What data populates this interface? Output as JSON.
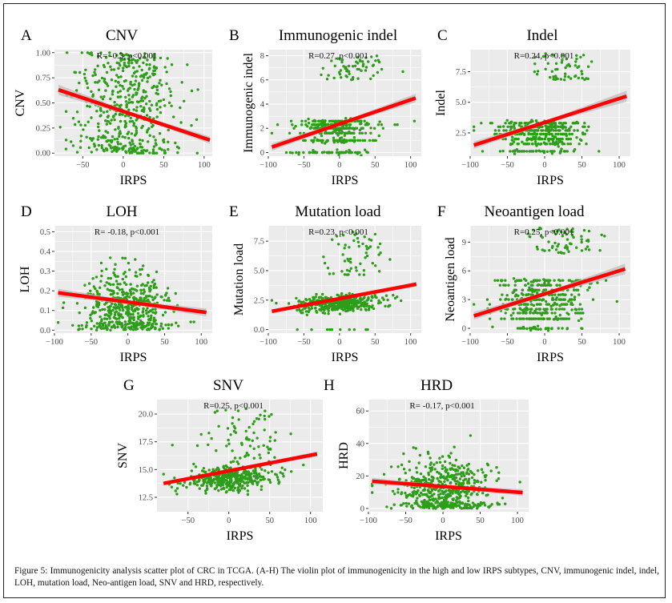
{
  "figure": {
    "caption": "Figure 5: Immunogenicity analysis scatter plot of CRC in TCGA. (A-H) The violin plot of immunogenicity in the high and low IRPS subtypes, CNV, immunogenic indel, indel, LOH, mutation load, Neo-antigen load, SNV and HRD, respectively.",
    "colors": {
      "point": "#2e9e1a",
      "fit_line": "#ff0000",
      "ci_band": "#bdbdbd",
      "panel_bg": "#ebebeb",
      "grid": "#ffffff"
    }
  },
  "chart_data": [
    {
      "id": "A",
      "type": "scatter",
      "title": "CNV",
      "xlabel": "IRPS",
      "ylabel": "CNV",
      "stat": "R= -0.3, p<0.001",
      "xlim": [
        -85,
        110
      ],
      "ylim": [
        -0.03,
        1.03
      ],
      "xticks": [
        -50,
        0,
        50,
        100
      ],
      "xtick_labels": [
        "−50",
        "0",
        "50",
        "100"
      ],
      "yticks": [
        0,
        0.25,
        0.5,
        0.75,
        1.0
      ],
      "ytick_labels": [
        "0.00",
        "0.25",
        "0.50",
        "0.75",
        "1.00"
      ],
      "fit": {
        "x": [
          -80,
          107
        ],
        "y": [
          0.63,
          0.13
        ],
        "ci": [
          0.05,
          0.035
        ]
      },
      "points": {
        "n": 520,
        "x_mean": 5,
        "x_sd": 32,
        "x_range": [
          -80,
          107
        ],
        "pattern": "uniform",
        "y_range": [
          0,
          1.0
        ],
        "y_floor_cluster": 0.12
      }
    },
    {
      "id": "B",
      "type": "scatter",
      "title": "Immunogenic indel",
      "xlabel": "IRPS",
      "ylabel": "Immunogenic indel",
      "stat": "R=0.27, p<0.001",
      "xlim": [
        -100,
        115
      ],
      "ylim": [
        -0.3,
        8.5
      ],
      "xticks": [
        -100,
        -50,
        0,
        50,
        100
      ],
      "xtick_labels": [
        "−100",
        "−50",
        "0",
        "50",
        "100"
      ],
      "yticks": [
        0,
        2,
        4,
        6,
        8
      ],
      "ytick_labels": [
        "0",
        "2",
        "4",
        "6",
        "8"
      ],
      "fit": {
        "x": [
          -95,
          107
        ],
        "y": [
          0.45,
          4.5
        ],
        "ci": [
          0.3,
          0.35
        ]
      },
      "points": {
        "n": 440,
        "x_mean": -5,
        "x_sd": 30,
        "x_range": [
          -95,
          107
        ],
        "pattern": "levels",
        "levels": [
          0,
          1,
          1.6,
          2,
          2.3,
          2.6
        ],
        "upper_band": [
          6,
          8
        ],
        "upper_fraction": 0.13,
        "upper_x_mean": 25
      }
    },
    {
      "id": "C",
      "type": "scatter",
      "title": "Indel",
      "xlabel": "IRPS",
      "ylabel": "Indel",
      "stat": "R=0.24, p<0.001",
      "xlim": [
        -100,
        115
      ],
      "ylim": [
        0.6,
        9.3
      ],
      "xticks": [
        -100,
        -50,
        0,
        50,
        100
      ],
      "xtick_labels": [
        "−100",
        "−50",
        "0",
        "50",
        "100"
      ],
      "yticks": [
        2.5,
        5.0,
        7.5
      ],
      "ytick_labels": [
        "2.5",
        "5.0",
        "7.5"
      ],
      "fit": {
        "x": [
          -95,
          110
        ],
        "y": [
          1.5,
          5.5
        ],
        "ci": [
          0.3,
          0.45
        ]
      },
      "points": {
        "n": 440,
        "x_mean": -5,
        "x_sd": 30,
        "x_range": [
          -95,
          110
        ],
        "pattern": "levels",
        "levels": [
          1.0,
          1.6,
          2.0,
          2.4,
          2.7,
          3.0,
          3.3
        ],
        "upper_band": [
          6.8,
          9
        ],
        "upper_fraction": 0.14,
        "upper_x_mean": 25
      }
    },
    {
      "id": "D",
      "type": "scatter",
      "title": "LOH",
      "xlabel": "IRPS",
      "ylabel": "LOH",
      "stat": "R= -0.18, p<0.001",
      "xlim": [
        -100,
        115
      ],
      "ylim": [
        -0.015,
        0.53
      ],
      "xticks": [
        -100,
        -50,
        0,
        50,
        100
      ],
      "xtick_labels": [
        "−100",
        "−50",
        "0",
        "50",
        "100"
      ],
      "yticks": [
        0,
        0.1,
        0.2,
        0.3,
        0.4,
        0.5
      ],
      "ytick_labels": [
        "0.0",
        "0.1",
        "0.2",
        "0.3",
        "0.4",
        "0.5"
      ],
      "fit": {
        "x": [
          -95,
          107
        ],
        "y": [
          0.19,
          0.09
        ],
        "ci": [
          0.02,
          0.02
        ]
      },
      "points": {
        "n": 520,
        "x_mean": 0,
        "x_sd": 30,
        "x_range": [
          -95,
          107
        ],
        "pattern": "skewed",
        "y_range": [
          0,
          0.5
        ],
        "y_mean": 0.13,
        "y_sd": 0.09
      }
    },
    {
      "id": "E",
      "type": "scatter",
      "title": "Mutation load",
      "xlabel": "IRPS",
      "ylabel": "Mutation load",
      "stat": "R=0.23, p<0.001",
      "xlim": [
        -100,
        115
      ],
      "ylim": [
        -0.3,
        8.8
      ],
      "xticks": [
        -100,
        -50,
        0,
        50,
        100
      ],
      "xtick_labels": [
        "−100",
        "−50",
        "0",
        "50",
        "100"
      ],
      "yticks": [
        0,
        2.5,
        5.0,
        7.5
      ],
      "ytick_labels": [
        "0.0",
        "2.5",
        "5.0",
        "7.5"
      ],
      "fit": {
        "x": [
          -95,
          108
        ],
        "y": [
          1.55,
          3.85
        ],
        "ci": [
          0.15,
          0.2
        ]
      },
      "points": {
        "n": 480,
        "x_mean": 0,
        "x_sd": 30,
        "x_range": [
          -95,
          108
        ],
        "pattern": "cluster",
        "y_mean": 2.2,
        "y_sd": 0.35,
        "zero_fraction": 0.03,
        "upper_band": [
          4.5,
          8.3
        ],
        "upper_fraction": 0.12,
        "upper_x_mean": 20
      }
    },
    {
      "id": "F",
      "type": "scatter",
      "title": "Neoantigen load",
      "xlabel": "IRPS",
      "ylabel": "Neoantigen load",
      "stat": "R=0.25, p<0.001",
      "xlim": [
        -100,
        115
      ],
      "ylim": [
        -0.5,
        10.7
      ],
      "xticks": [
        -100,
        -50,
        0,
        50,
        100
      ],
      "xtick_labels": [
        "−100",
        "−50",
        "0",
        "50",
        "100"
      ],
      "yticks": [
        0,
        3,
        6,
        9
      ],
      "ytick_labels": [
        "0",
        "3",
        "6",
        "9"
      ],
      "fit": {
        "x": [
          -95,
          108
        ],
        "y": [
          1.3,
          6.2
        ],
        "ci": [
          0.4,
          0.55
        ]
      },
      "points": {
        "n": 480,
        "x_mean": -5,
        "x_sd": 30,
        "x_range": [
          -95,
          108
        ],
        "pattern": "levels",
        "levels": [
          0,
          1,
          1.6,
          2,
          2.5,
          3,
          3.5,
          4,
          4.5,
          5
        ],
        "upper_band": [
          7.8,
          10.5
        ],
        "upper_fraction": 0.13,
        "upper_x_mean": 25
      }
    },
    {
      "id": "G",
      "type": "scatter",
      "title": "SNV",
      "xlabel": "IRPS",
      "ylabel": "SNV",
      "stat": "R=0.25, p<0.001",
      "xlim": [
        -88,
        115
      ],
      "ylim": [
        11.2,
        21.3
      ],
      "xticks": [
        -50,
        0,
        50,
        100
      ],
      "xtick_labels": [
        "−50",
        "0",
        "50",
        "100"
      ],
      "yticks": [
        12.5,
        15.0,
        17.5,
        20.0
      ],
      "ytick_labels": [
        "12.5",
        "15.0",
        "17.5",
        "20.0"
      ],
      "fit": {
        "x": [
          -80,
          108
        ],
        "y": [
          13.75,
          16.4
        ],
        "ci": [
          0.15,
          0.25
        ]
      },
      "points": {
        "n": 470,
        "x_mean": 0,
        "x_sd": 28,
        "x_range": [
          -80,
          108
        ],
        "pattern": "cluster",
        "y_mean": 14.2,
        "y_sd": 0.55,
        "zero_fraction": 0,
        "upper_band": [
          16,
          20.5
        ],
        "upper_fraction": 0.14,
        "upper_x_mean": 20
      }
    },
    {
      "id": "H",
      "type": "scatter",
      "title": "HRD",
      "xlabel": "IRPS",
      "ylabel": "HRD",
      "stat": "R= -0.17, p<0.001",
      "xlim": [
        -100,
        115
      ],
      "ylim": [
        -2,
        67
      ],
      "xticks": [
        -100,
        -50,
        0,
        50,
        100
      ],
      "xtick_labels": [
        "−100",
        "−50",
        "0",
        "50",
        "100"
      ],
      "yticks": [
        0,
        20,
        40,
        60
      ],
      "ytick_labels": [
        "0",
        "20",
        "40",
        "60"
      ],
      "fit": {
        "x": [
          -95,
          107
        ],
        "y": [
          16.8,
          9.8
        ],
        "ci": [
          2,
          2
        ]
      },
      "points": {
        "n": 560,
        "x_mean": 0,
        "x_sd": 30,
        "x_range": [
          -95,
          107
        ],
        "pattern": "skewed",
        "y_range": [
          0,
          64
        ],
        "y_mean": 13,
        "y_sd": 9
      }
    }
  ]
}
